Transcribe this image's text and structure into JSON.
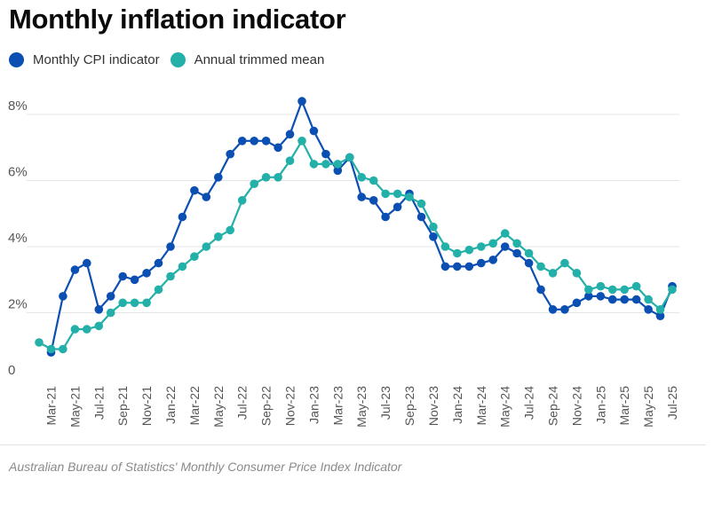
{
  "title": "Monthly inflation indicator",
  "source": "Australian Bureau of Statistics' Monthly Consumer Price Index Indicator",
  "colors": {
    "cpi": "#0b4fb3",
    "trimmed": "#22b0a8",
    "grid": "#e6e6e6",
    "axis_text": "#555555"
  },
  "legend": [
    {
      "label": "Monthly CPI indicator",
      "color": "#0b4fb3"
    },
    {
      "label": "Annual trimmed mean",
      "color": "#22b0a8"
    }
  ],
  "chart_data": {
    "type": "line",
    "x": [
      "Feb-21",
      "Mar-21",
      "Apr-21",
      "May-21",
      "Jun-21",
      "Jul-21",
      "Aug-21",
      "Sep-21",
      "Oct-21",
      "Nov-21",
      "Dec-21",
      "Jan-22",
      "Feb-22",
      "Mar-22",
      "Apr-22",
      "May-22",
      "Jun-22",
      "Jul-22",
      "Aug-22",
      "Sep-22",
      "Oct-22",
      "Nov-22",
      "Dec-22",
      "Jan-23",
      "Feb-23",
      "Mar-23",
      "Apr-23",
      "May-23",
      "Jun-23",
      "Jul-23",
      "Aug-23",
      "Sep-23",
      "Oct-23",
      "Nov-23",
      "Dec-23",
      "Jan-24",
      "Feb-24",
      "Mar-24",
      "Apr-24",
      "May-24",
      "Jun-24",
      "Jul-24",
      "Aug-24",
      "Sep-24",
      "Oct-24",
      "Nov-24",
      "Dec-24",
      "Jan-25",
      "Feb-25",
      "Mar-25",
      "Apr-25",
      "May-25",
      "Jun-25",
      "Jul-25"
    ],
    "x_tick_labels": [
      "Mar-21",
      "May-21",
      "Jul-21",
      "Sep-21",
      "Nov-21",
      "Jan-22",
      "Mar-22",
      "May-22",
      "Jul-22",
      "Sep-22",
      "Nov-22",
      "Jan-23",
      "Mar-23",
      "May-23",
      "Jul-23",
      "Sep-23",
      "Nov-23",
      "Jan-24",
      "Mar-24",
      "May-24",
      "Jul-24",
      "Sep-24",
      "Nov-24",
      "Jan-25",
      "Mar-25",
      "May-25",
      "Jul-25"
    ],
    "series": [
      {
        "name": "Monthly CPI indicator",
        "color": "#0b4fb3",
        "values": [
          null,
          0.8,
          2.5,
          3.3,
          3.5,
          2.1,
          2.5,
          3.1,
          3.0,
          3.2,
          3.5,
          4.0,
          4.9,
          5.7,
          5.5,
          6.1,
          6.8,
          7.2,
          7.2,
          7.2,
          7.0,
          7.4,
          8.4,
          7.5,
          6.8,
          6.3,
          6.7,
          5.5,
          5.4,
          4.9,
          5.2,
          5.6,
          4.9,
          4.3,
          3.4,
          3.4,
          3.4,
          3.5,
          3.6,
          4.0,
          3.8,
          3.5,
          2.7,
          2.1,
          2.1,
          2.3,
          2.5,
          2.5,
          2.4,
          2.4,
          2.4,
          2.1,
          1.9,
          2.8
        ]
      },
      {
        "name": "Annual trimmed mean",
        "color": "#22b0a8",
        "values": [
          1.1,
          0.9,
          0.9,
          1.5,
          1.5,
          1.6,
          2.0,
          2.3,
          2.3,
          2.3,
          2.7,
          3.1,
          3.4,
          3.7,
          4.0,
          4.3,
          4.5,
          5.4,
          5.9,
          6.1,
          6.1,
          6.6,
          7.2,
          6.5,
          6.5,
          6.5,
          6.7,
          6.1,
          6.0,
          5.6,
          5.6,
          5.5,
          5.3,
          4.6,
          4.0,
          3.8,
          3.9,
          4.0,
          4.1,
          4.4,
          4.1,
          3.8,
          3.4,
          3.2,
          3.5,
          3.2,
          2.7,
          2.8,
          2.7,
          2.7,
          2.8,
          2.4,
          2.1,
          2.7
        ]
      }
    ],
    "y_ticks": [
      {
        "value": 0,
        "label": "0"
      },
      {
        "value": 2,
        "label": "2%"
      },
      {
        "value": 4,
        "label": "4%"
      },
      {
        "value": 6,
        "label": "6%"
      },
      {
        "value": 8,
        "label": "8%"
      }
    ],
    "ylim": [
      0,
      8.6
    ],
    "grid": true,
    "legend_position": "top-left",
    "xlabel": "",
    "ylabel": ""
  }
}
